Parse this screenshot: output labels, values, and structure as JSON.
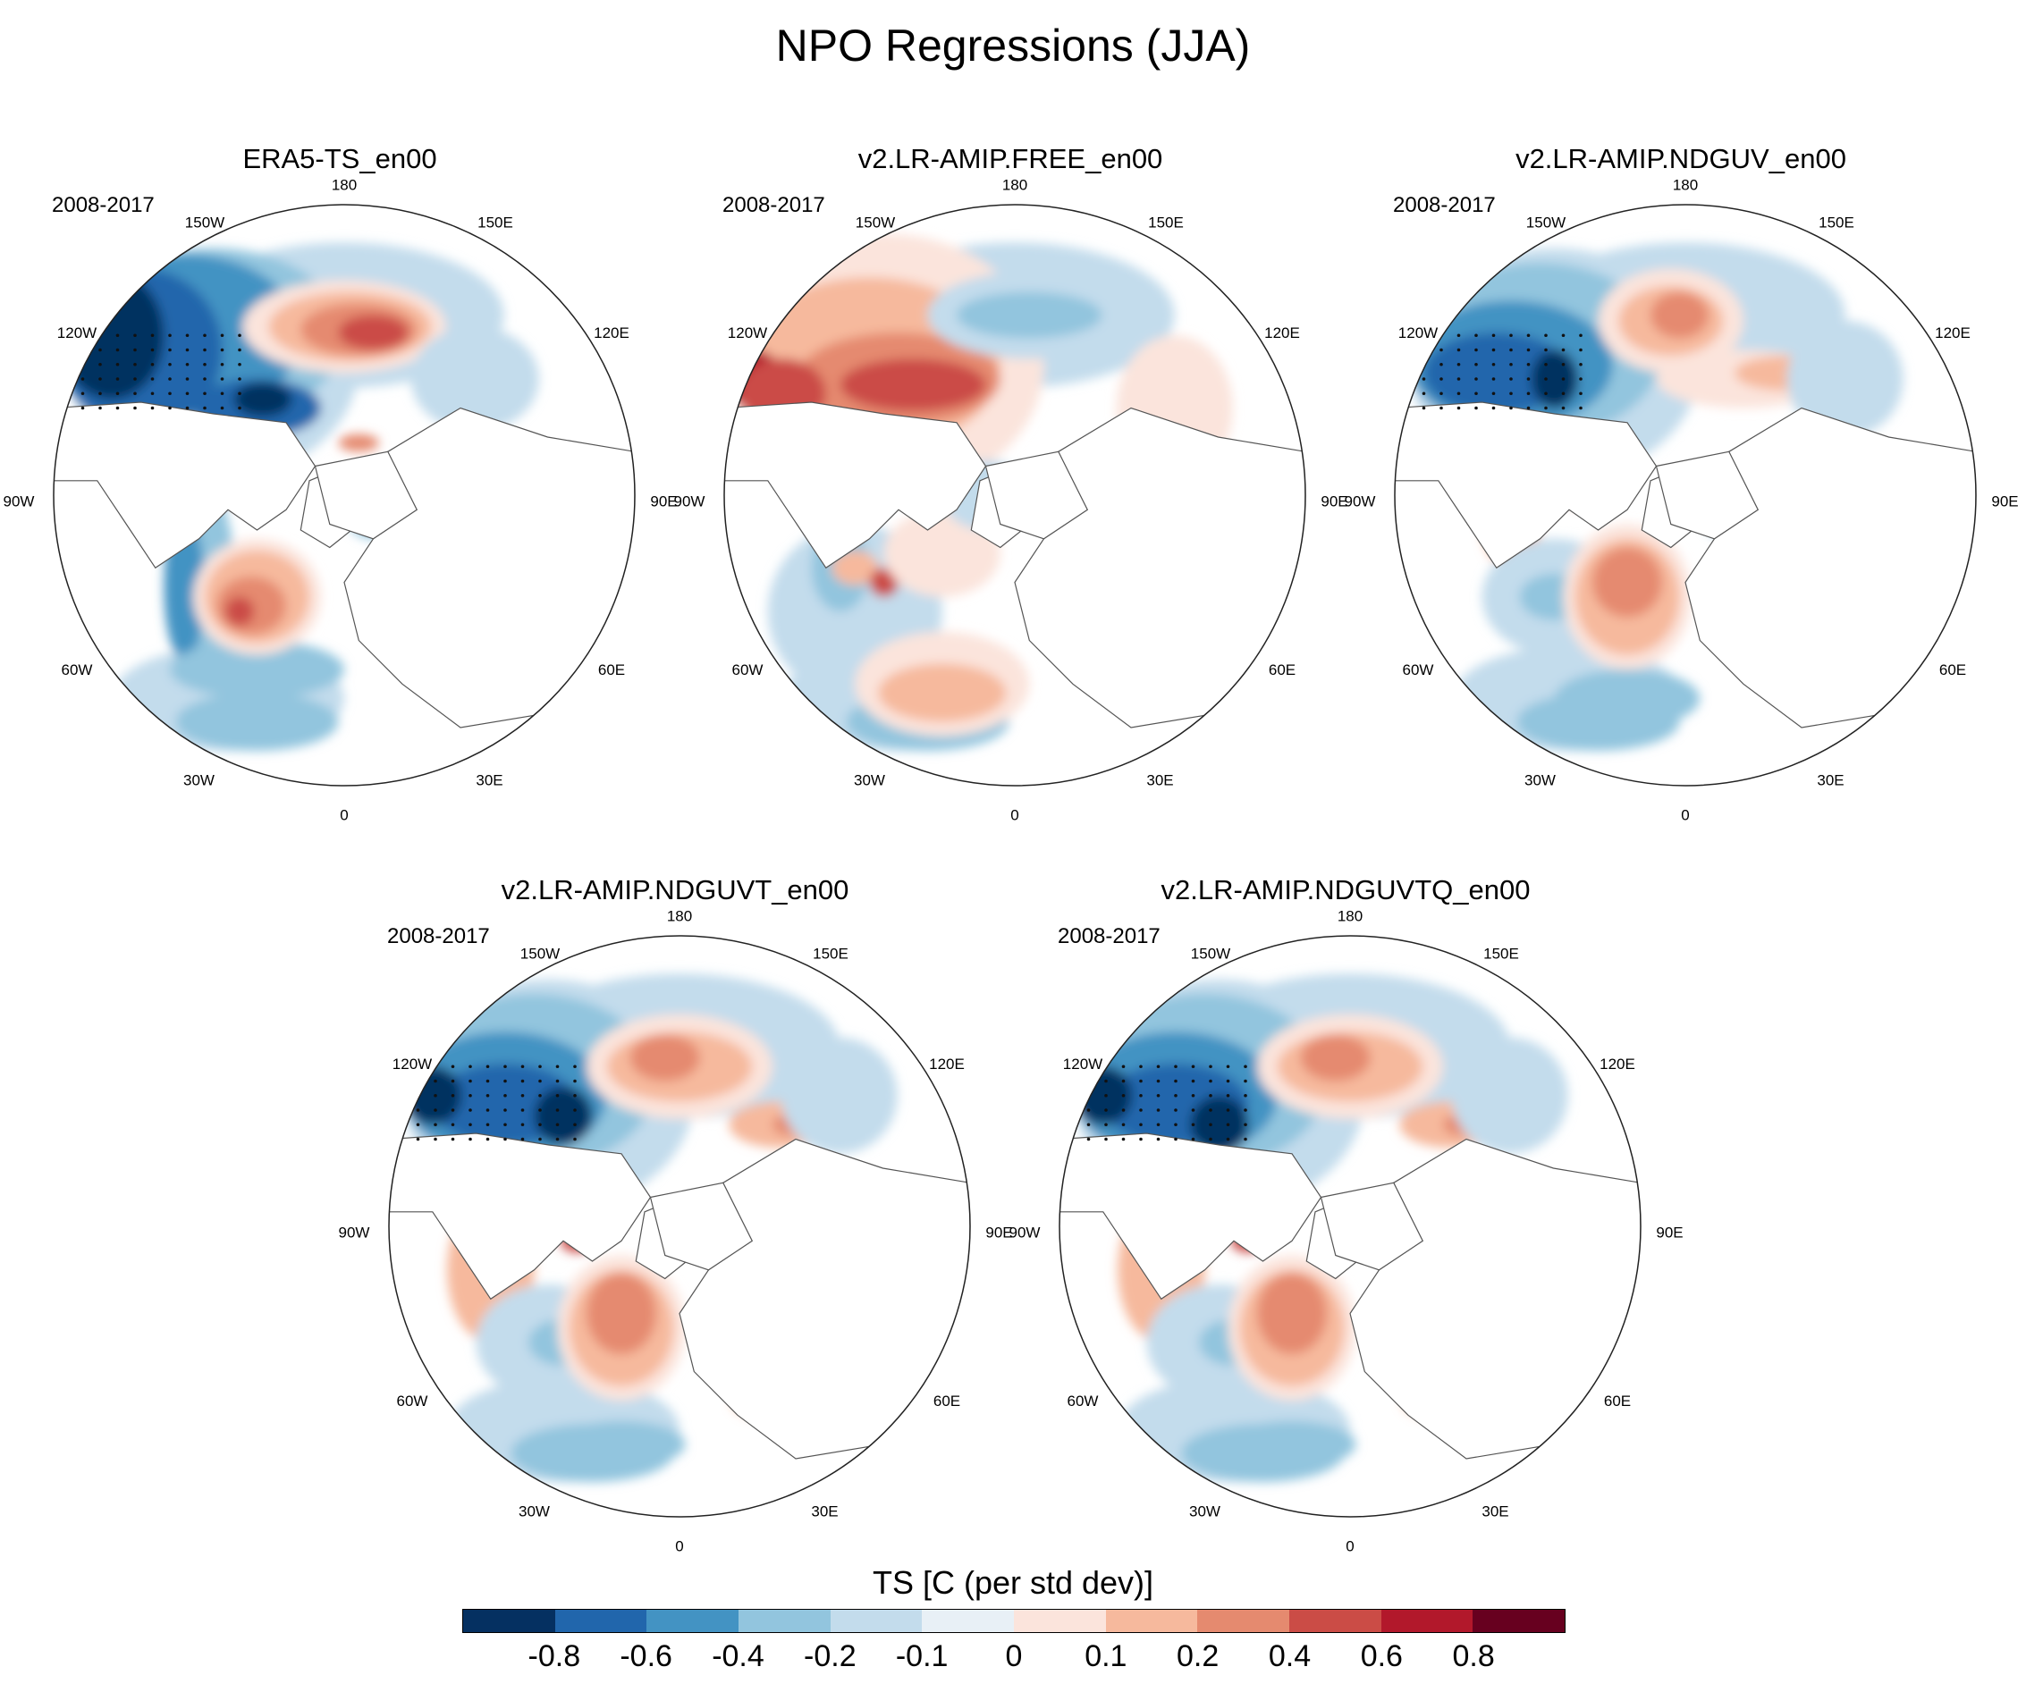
{
  "title": "NPO Regressions (JJA)",
  "period_label": "2008-2017",
  "lon_labels": {
    "top": "180",
    "top_left": "150W",
    "top_right": "150E",
    "upper_left": "120W",
    "upper_right": "120E",
    "left": "90W",
    "right": "90E",
    "lower_left": "60W",
    "lower_right": "60E",
    "bottom_left": "30W",
    "bottom_right": "30E",
    "bottom": "0"
  },
  "panels": [
    {
      "name": "ERA5-TS_en00"
    },
    {
      "name": "v2.LR-AMIP.FREE_en00"
    },
    {
      "name": "v2.LR-AMIP.NDGUV_en00"
    },
    {
      "name": "v2.LR-AMIP.NDGUVT_en00"
    },
    {
      "name": "v2.LR-AMIP.NDGUVTQ_en00"
    }
  ],
  "colorbar": {
    "title": "TS [C (per std dev)]",
    "colors": [
      "#053061",
      "#2166ac",
      "#4393c3",
      "#92c5de",
      "#c3dcec",
      "#e8f0f6",
      "#fbe4dc",
      "#f6b99d",
      "#e58a6f",
      "#cb4c46",
      "#b2182b",
      "#67001f"
    ],
    "labels": [
      "-0.8",
      "-0.6",
      "-0.4",
      "-0.2",
      "-0.1",
      "0",
      "0.1",
      "0.2",
      "0.4",
      "0.6",
      "0.8"
    ]
  },
  "map_colors": {
    "deep_blue": "#053061",
    "blue": "#2166ac",
    "mid_blue": "#4393c3",
    "light_blue": "#92c5de",
    "pale_blue": "#c3dcec",
    "pale_red": "#fbe4dc",
    "light_red": "#f6b99d",
    "red": "#e58a6f",
    "strong_red": "#cb4c46",
    "dark_red": "#b2182b",
    "deepest_red": "#67001f"
  }
}
